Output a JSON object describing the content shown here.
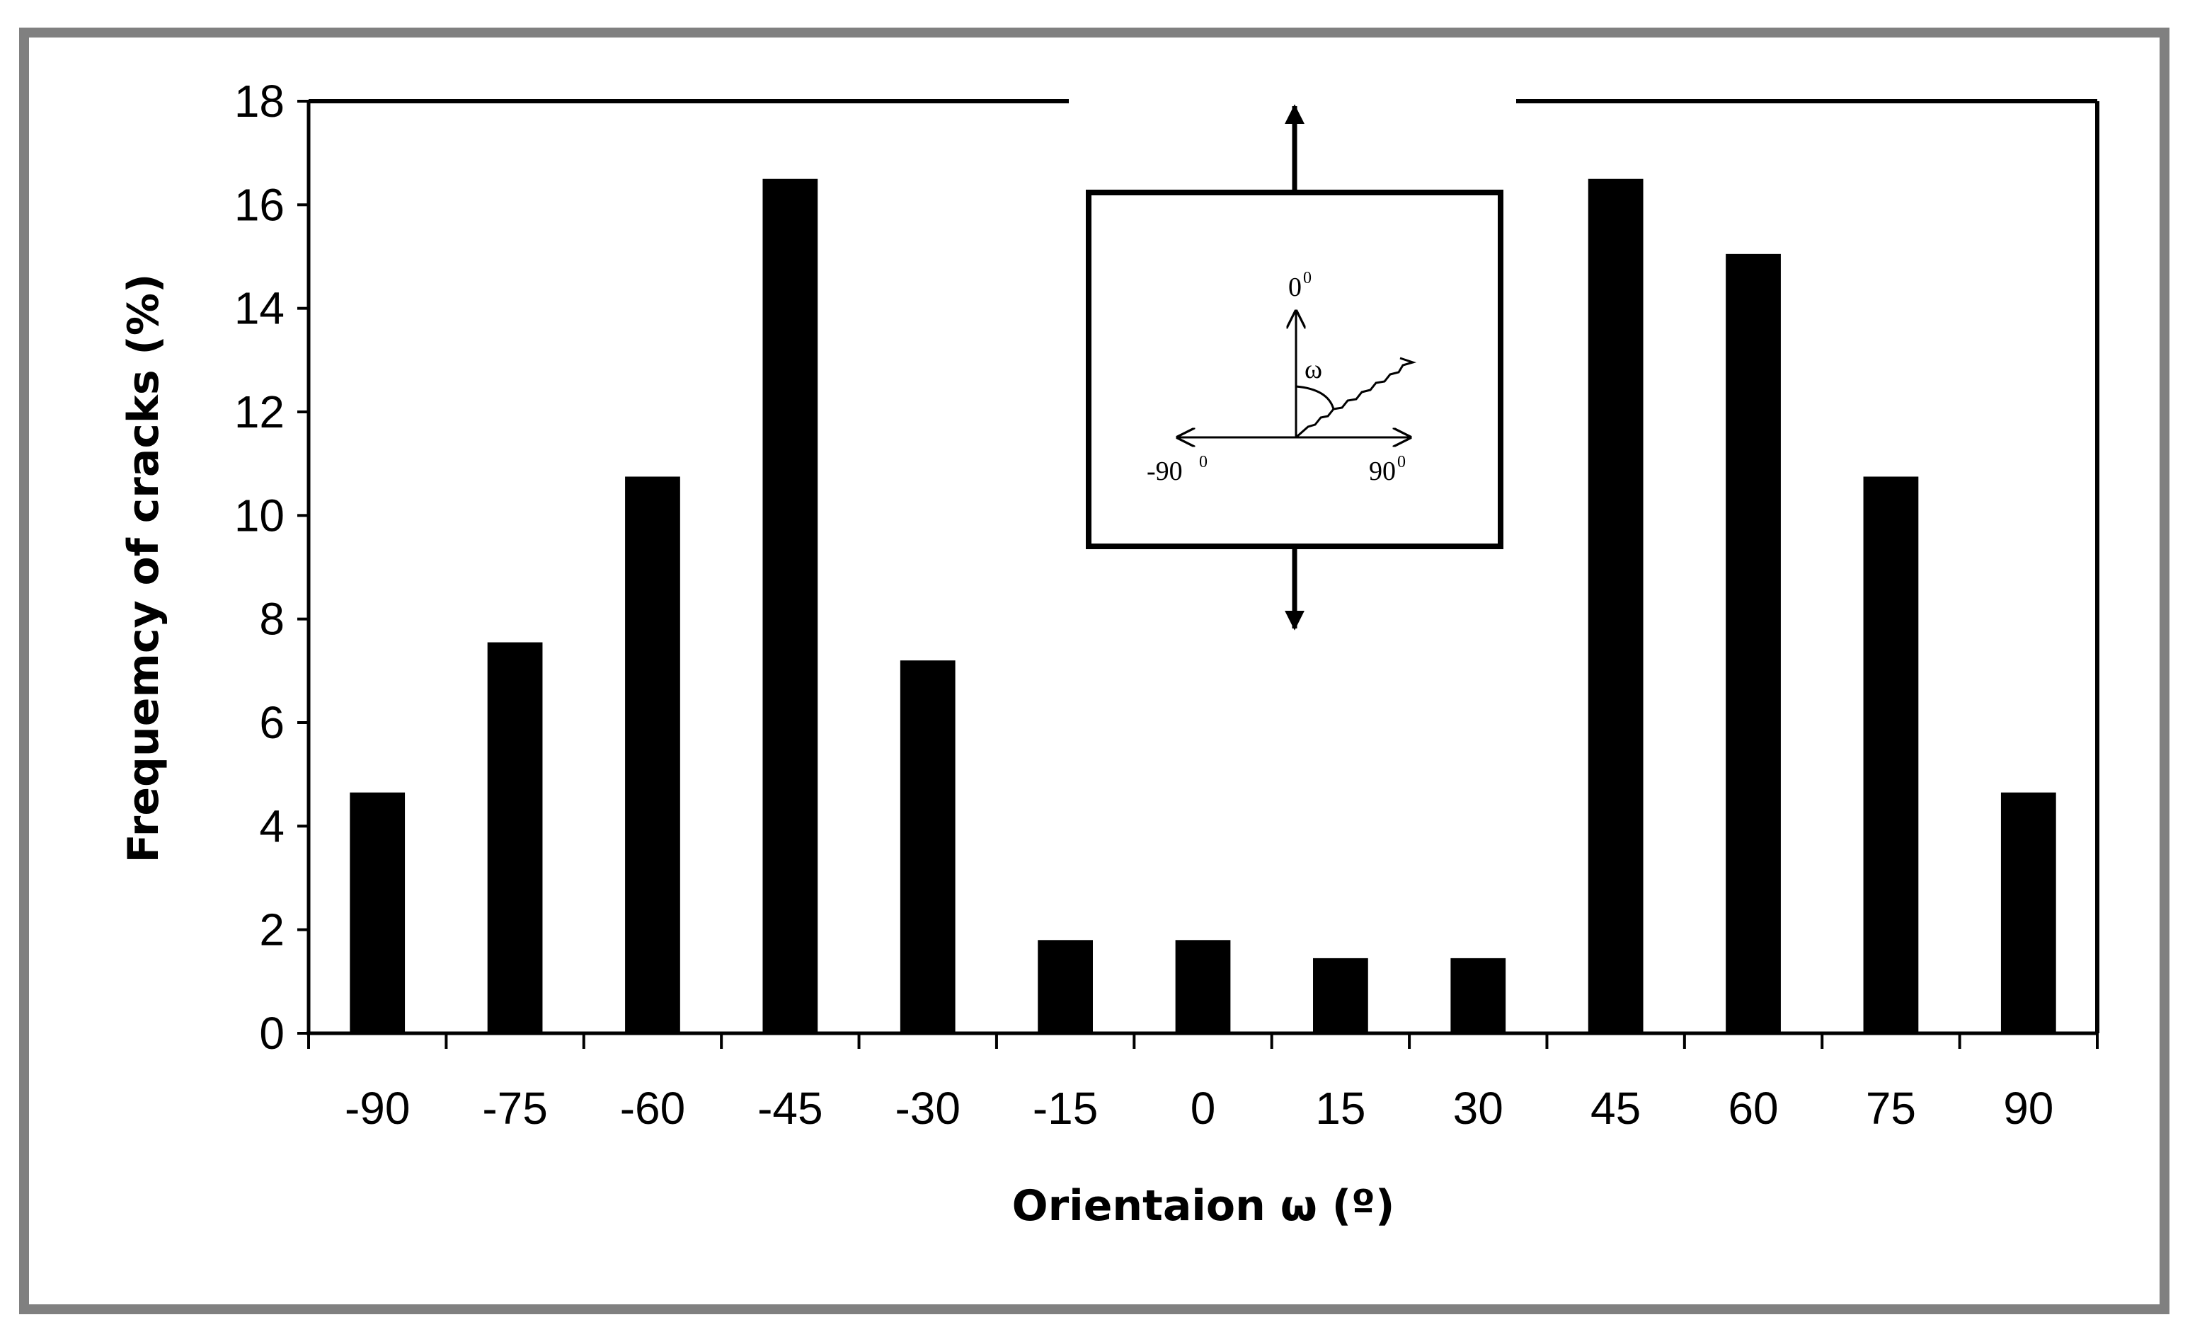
{
  "chart_data": {
    "type": "bar",
    "categories": [
      "-90",
      "-75",
      "-60",
      "-45",
      "-30",
      "-15",
      "0",
      "15",
      "30",
      "45",
      "60",
      "75",
      "90"
    ],
    "values": [
      4.65,
      7.55,
      10.75,
      16.5,
      7.2,
      1.8,
      1.8,
      1.45,
      1.45,
      16.5,
      15.05,
      10.75,
      4.65
    ],
    "xlabel": "Orientaion ω (º)",
    "ylabel": "Frequemcy of cracks (%)",
    "ylim": [
      0,
      18
    ],
    "yticks": [
      "0",
      "2",
      "4",
      "6",
      "8",
      "10",
      "12",
      "14",
      "16",
      "18"
    ],
    "bar_color": "#000000",
    "grid": false,
    "legend": "none",
    "inset": {
      "label_top": "0",
      "label_left": "-90",
      "label_right": "90",
      "label_angle": "ω",
      "degree_sup": "0"
    }
  },
  "colors": {
    "frame_border": "#808080",
    "bars": "#000000",
    "background": "#ffffff"
  }
}
